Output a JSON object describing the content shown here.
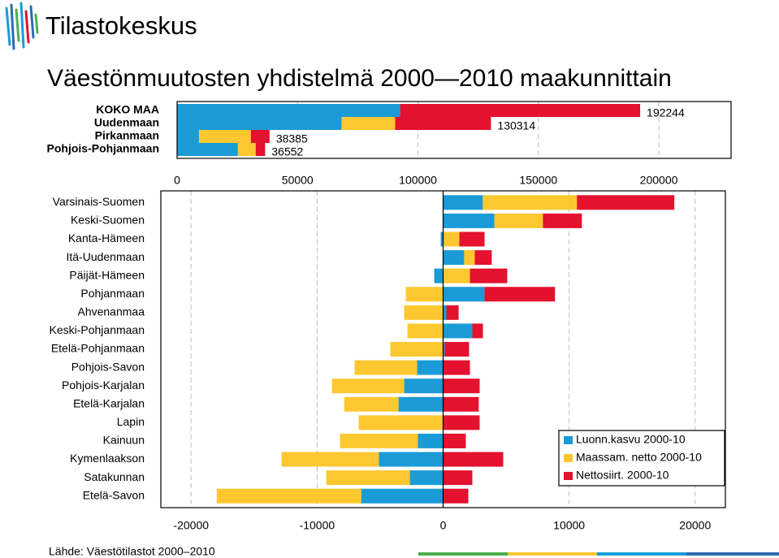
{
  "logo": "Tilastokeskus",
  "title": "Väestönmuutosten yhdistelmä 2000—2010 maakunnittain",
  "source": "Lähde: Väestötilastot 2000–2010",
  "chart_data": [
    {
      "type": "bar",
      "orientation": "horizontal",
      "stacked": true,
      "categories": [
        "KOKO MAA",
        "Uudenmaan",
        "Pirkanmaan",
        "Pohjois-Pohjanmaan"
      ],
      "series": [
        {
          "color": "#1a9bd7",
          "values": [
            92600,
            68350,
            9090,
            25250
          ]
        },
        {
          "color": "#fdc82f",
          "values": [
            0,
            22200,
            21550,
            7400
          ]
        },
        {
          "color": "#e4112f",
          "values": [
            99644,
            39764,
            7745,
            3902
          ]
        }
      ],
      "totals": [
        192244,
        130314,
        38385,
        36552
      ],
      "xlim": [
        0,
        230000
      ],
      "xticks": [
        0,
        50000,
        100000,
        150000,
        200000
      ],
      "grid": true
    },
    {
      "type": "bar",
      "orientation": "horizontal",
      "stacked": true,
      "categories": [
        "Varsinais-Suomen",
        "Keski-Suomen",
        "Kanta-Hämeen",
        "Itä-Uudenmaan",
        "Päijät-Hämeen",
        "Pohjanmaan",
        "Ahvenanmaa",
        "Keski-Pohjanmaan",
        "Etelä-Pohjanmaan",
        "Pohjois-Savon",
        "Pohjois-Karjalan",
        "Etelä-Karjalan",
        "Lapin",
        "Kainuun",
        "Kymenlaakson",
        "Satakunnan",
        "Etelä-Savon"
      ],
      "series": [
        {
          "name": "Luonn.kasvu 2000-10",
          "color": "#1a9bd7",
          "values": [
            3150,
            4060,
            -190,
            1670,
            -710,
            3280,
            260,
            2320,
            130,
            -2060,
            -3090,
            -3540,
            0,
            -2000,
            -5090,
            -2640,
            -6500
          ]
        },
        {
          "name": "Maassam. netto  2000-10",
          "color": "#fdc82f",
          "values": [
            7470,
            3860,
            1290,
            840,
            2130,
            -2960,
            -3090,
            -2830,
            -4190,
            -4960,
            -5730,
            -4310,
            -6700,
            -6180,
            -7730,
            -6630,
            -11460
          ]
        },
        {
          "name": "Nettosiirt. 2000-10",
          "color": "#e4112f",
          "values": [
            7730,
            3090,
            2000,
            1350,
            2960,
            5600,
            970,
            840,
            1930,
            2130,
            2900,
            2830,
            2900,
            1800,
            4770,
            2320,
            2000
          ]
        }
      ],
      "xlim": [
        -22400,
        22400
      ],
      "xticks": [
        -20000,
        -10000,
        0,
        10000,
        20000
      ],
      "grid": true,
      "legend": "lower right"
    }
  ]
}
